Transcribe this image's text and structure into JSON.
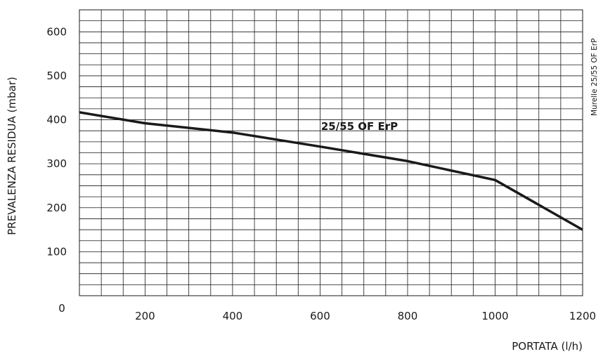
{
  "chart_data": {
    "type": "line",
    "title": "",
    "xlabel": "PORTATA (l/h)",
    "ylabel": "PREVALENZA RESIDUA (mbar)",
    "side_label": "Murelle 25/55 OF ErP",
    "xlim": [
      50,
      1200
    ],
    "ylim": [
      0,
      650
    ],
    "x_ticks": [
      200,
      400,
      600,
      800,
      1000,
      1200
    ],
    "y_ticks": [
      100,
      200,
      300,
      400,
      500,
      600
    ],
    "origin_label": "0",
    "x_gridlines": [
      100,
      150,
      200,
      250,
      300,
      350,
      400,
      450,
      500,
      550,
      600,
      650,
      700,
      750,
      800,
      850,
      900,
      950,
      1000,
      1050,
      1100,
      1150,
      1200
    ],
    "y_gridlines": [
      25,
      50,
      75,
      100,
      125,
      150,
      175,
      200,
      225,
      250,
      275,
      300,
      325,
      350,
      375,
      400,
      425,
      450,
      475,
      500,
      525,
      550,
      575,
      600,
      625,
      650
    ],
    "grid": true,
    "series": [
      {
        "name": "25/55 OF ErP",
        "label_at": [
          690,
          385
        ],
        "x": [
          50,
          200,
          400,
          600,
          800,
          1000,
          1200
        ],
        "y": [
          417,
          392,
          371,
          339,
          306,
          263,
          150
        ]
      }
    ],
    "colors": {
      "line": "#1a1a1a",
      "grid": "#1a1a1a",
      "text": "#1a1a1a"
    }
  }
}
